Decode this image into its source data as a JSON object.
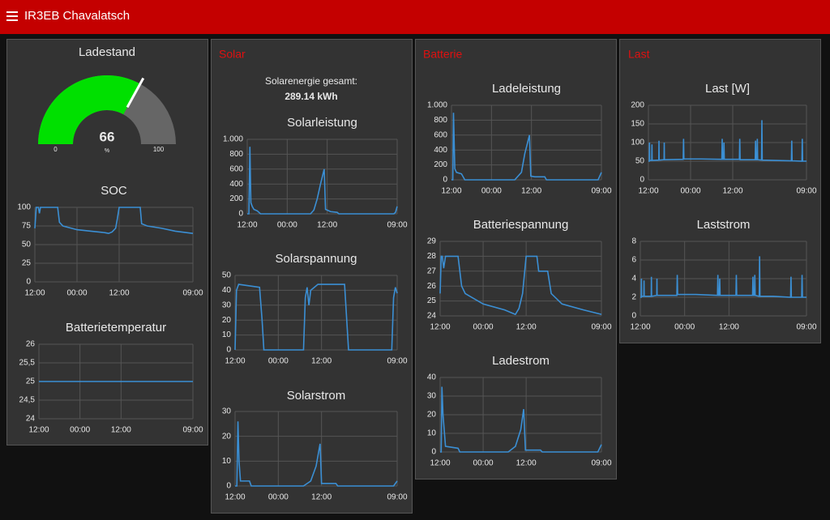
{
  "header": {
    "title": "IR3EB Chavalatsch"
  },
  "groups": [
    {
      "widgets": [
        {
          "type": "gauge",
          "title": "Ladestand",
          "value": 66,
          "min": 0,
          "max": 100,
          "units": "%",
          "color": "#00e000"
        },
        {
          "type": "line",
          "title": "SOC",
          "color": "#3b8fd4",
          "xlim": [
            0,
            45
          ],
          "xticks": [
            {
              "value": 0,
              "label": "12:00"
            },
            {
              "value": 12,
              "label": "00:00"
            },
            {
              "value": 24,
              "label": "12:00"
            },
            {
              "value": 45,
              "label": "09:00"
            }
          ],
          "ylim": [
            0,
            100
          ],
          "yticks": [
            0,
            25,
            50,
            75,
            100
          ],
          "x": [
            0,
            0.4,
            1,
            1.3,
            1.6,
            6.5,
            7,
            8,
            12,
            16,
            20,
            21,
            22,
            23,
            23.5,
            24,
            30,
            30.4,
            32,
            36,
            40,
            45
          ],
          "values": [
            72,
            100,
            100,
            92,
            100,
            100,
            80,
            75,
            70,
            68,
            66,
            65,
            67,
            72,
            85,
            100,
            100,
            78,
            75,
            72,
            68,
            65
          ]
        },
        {
          "type": "line",
          "title": "Batterietemperatur",
          "color": "#3b8fd4",
          "xlim": [
            0,
            45
          ],
          "xticks": [
            {
              "value": 0,
              "label": "12:00"
            },
            {
              "value": 12,
              "label": "00:00"
            },
            {
              "value": 24,
              "label": "12:00"
            },
            {
              "value": 45,
              "label": "09:00"
            }
          ],
          "ylim": [
            24,
            26
          ],
          "yticks": [
            24,
            {
              "value": 24.5,
              "label": "24,5"
            },
            25,
            {
              "value": 25.5,
              "label": "25,5"
            },
            26
          ],
          "x": [
            0,
            45
          ],
          "values": [
            25,
            25
          ]
        }
      ]
    },
    {
      "title": "Solar",
      "widgets": [
        {
          "type": "text",
          "label": "Solarenergie gesamt:",
          "value": "289.14 kWh"
        },
        {
          "type": "line",
          "title": "Solarleistung",
          "color": "#3b8fd4",
          "xlim": [
            0,
            45
          ],
          "xticks": [
            {
              "value": 0,
              "label": "12:00"
            },
            {
              "value": 12,
              "label": "00:00"
            },
            {
              "value": 24,
              "label": "12:00"
            },
            {
              "value": 45,
              "label": "09:00"
            }
          ],
          "ylim": [
            0,
            1000
          ],
          "yticks": [
            0,
            200,
            400,
            600,
            800,
            {
              "value": 1000,
              "label": "1.000"
            }
          ],
          "x": [
            0,
            0.5,
            0.8,
            1.1,
            1.5,
            2,
            3,
            4,
            19,
            20,
            21,
            22,
            23.1,
            23.5,
            24,
            25,
            27,
            27.5,
            44,
            44.5,
            45
          ],
          "values": [
            0,
            0,
            900,
            150,
            100,
            60,
            40,
            0,
            0,
            50,
            200,
            400,
            600,
            60,
            50,
            30,
            20,
            0,
            0,
            20,
            100
          ]
        },
        {
          "type": "line",
          "title": "Solarspannung",
          "color": "#3b8fd4",
          "xlim": [
            0,
            45
          ],
          "xticks": [
            {
              "value": 0,
              "label": "12:00"
            },
            {
              "value": 12,
              "label": "00:00"
            },
            {
              "value": 24,
              "label": "12:00"
            },
            {
              "value": 45,
              "label": "09:00"
            }
          ],
          "ylim": [
            0,
            50
          ],
          "yticks": [
            0,
            10,
            20,
            30,
            40,
            50
          ],
          "x": [
            0,
            0.4,
            1,
            6.8,
            7.5,
            8,
            19,
            19.5,
            20,
            20.5,
            21,
            22,
            23,
            30.4,
            31.5,
            43.5,
            44,
            44.5,
            45
          ],
          "values": [
            0,
            40,
            44,
            42,
            20,
            0,
            0,
            35,
            42,
            30,
            40,
            42,
            44,
            44,
            0,
            0,
            35,
            42,
            38
          ]
        },
        {
          "type": "line",
          "title": "Solarstrom",
          "color": "#3b8fd4",
          "xlim": [
            0,
            45
          ],
          "xticks": [
            {
              "value": 0,
              "label": "12:00"
            },
            {
              "value": 12,
              "label": "00:00"
            },
            {
              "value": 24,
              "label": "12:00"
            },
            {
              "value": 45,
              "label": "09:00"
            }
          ],
          "ylim": [
            0,
            30
          ],
          "yticks": [
            0,
            10,
            20,
            30
          ],
          "x": [
            0,
            0.5,
            0.8,
            1.1,
            1.5,
            4,
            4.5,
            19,
            21,
            22.5,
            23.6,
            24,
            25,
            28,
            28.5,
            44,
            45
          ],
          "values": [
            0,
            0,
            26,
            10,
            2,
            2,
            0,
            0,
            2,
            8,
            17,
            1,
            1,
            1,
            0,
            0,
            2
          ]
        }
      ]
    },
    {
      "title": "Batterie",
      "widgets": [
        {
          "type": "line",
          "title": "Ladeleistung",
          "color": "#3b8fd4",
          "xlim": [
            0,
            45
          ],
          "xticks": [
            {
              "value": 0,
              "label": "12:00"
            },
            {
              "value": 12,
              "label": "00:00"
            },
            {
              "value": 24,
              "label": "12:00"
            },
            {
              "value": 45,
              "label": "09:00"
            }
          ],
          "ylim": [
            0,
            1000
          ],
          "yticks": [
            0,
            200,
            400,
            600,
            800,
            {
              "value": 1000,
              "label": "1.000"
            }
          ],
          "x": [
            0,
            0.4,
            0.6,
            1,
            1.5,
            3,
            4,
            19,
            21,
            22,
            23.4,
            23.8,
            25,
            28,
            28.5,
            44,
            45
          ],
          "values": [
            0,
            0,
            900,
            150,
            100,
            80,
            0,
            0,
            100,
            350,
            600,
            50,
            40,
            40,
            0,
            0,
            100
          ]
        },
        {
          "type": "line",
          "title": "Batteriespannung",
          "color": "#3b8fd4",
          "xlim": [
            0,
            45
          ],
          "xticks": [
            {
              "value": 0,
              "label": "12:00"
            },
            {
              "value": 12,
              "label": "00:00"
            },
            {
              "value": 24,
              "label": "12:00"
            },
            {
              "value": 45,
              "label": "09:00"
            }
          ],
          "ylim": [
            24,
            29
          ],
          "yticks": [
            24,
            25,
            26,
            27,
            28,
            29
          ],
          "x": [
            0,
            0.3,
            0.6,
            1,
            1.5,
            5,
            6,
            7,
            12,
            18,
            21,
            22,
            23,
            24,
            27,
            27.5,
            30,
            31,
            34,
            40,
            45
          ],
          "values": [
            25.5,
            28,
            28,
            27.2,
            28,
            28,
            26,
            25.5,
            24.8,
            24.4,
            24.1,
            24.5,
            25.5,
            28,
            28,
            27,
            27,
            25.5,
            24.8,
            24.4,
            24.1
          ]
        },
        {
          "type": "line",
          "title": "Ladestrom",
          "color": "#3b8fd4",
          "xlim": [
            0,
            45
          ],
          "xticks": [
            {
              "value": 0,
              "label": "12:00"
            },
            {
              "value": 12,
              "label": "00:00"
            },
            {
              "value": 24,
              "label": "12:00"
            },
            {
              "value": 45,
              "label": "09:00"
            }
          ],
          "ylim": [
            0,
            40
          ],
          "yticks": [
            0,
            10,
            20,
            30,
            40
          ],
          "x": [
            0,
            0.3,
            0.5,
            0.8,
            1.5,
            5,
            5.5,
            19,
            21,
            22.5,
            23.3,
            23.8,
            25,
            28,
            28.5,
            44,
            45
          ],
          "values": [
            0,
            0,
            35,
            20,
            3,
            2,
            0,
            0,
            3,
            12,
            23,
            1,
            1,
            1,
            0,
            0,
            4
          ]
        }
      ]
    },
    {
      "title": "Last",
      "widgets": [
        {
          "type": "line",
          "title": "Last [W]",
          "color": "#3b8fd4",
          "xlim": [
            0,
            45
          ],
          "xticks": [
            {
              "value": 0,
              "label": "12:00"
            },
            {
              "value": 12,
              "label": "00:00"
            },
            {
              "value": 24,
              "label": "12:00"
            },
            {
              "value": 45,
              "label": "09:00"
            }
          ],
          "ylim": [
            0,
            200
          ],
          "yticks": [
            0,
            50,
            100,
            150,
            200
          ],
          "x": [
            0,
            0.25,
            0.3,
            0.35,
            0.95,
            1,
            1.05,
            2.95,
            3,
            3.05,
            4.45,
            4.5,
            4.55,
            9.9,
            10,
            10.1,
            15,
            20.9,
            21,
            21.1,
            21.4,
            21.5,
            21.6,
            25.9,
            26,
            26.1,
            30.4,
            30.5,
            30.6,
            30.9,
            31,
            31.1,
            32.2,
            32.3,
            32.4,
            36,
            40.7,
            40.8,
            40.9,
            43.7,
            43.8,
            43.9,
            45
          ],
          "values": [
            50,
            50,
            100,
            52,
            52,
            95,
            52,
            53,
            105,
            53,
            54,
            100,
            54,
            55,
            110,
            56,
            56,
            55,
            110,
            55,
            55,
            100,
            55,
            55,
            110,
            54,
            54,
            105,
            54,
            54,
            110,
            54,
            53,
            160,
            53,
            52,
            51,
            105,
            51,
            50,
            110,
            50,
            50
          ]
        },
        {
          "type": "line",
          "title": "Laststrom",
          "color": "#3b8fd4",
          "xlim": [
            0,
            45
          ],
          "xticks": [
            {
              "value": 0,
              "label": "12:00"
            },
            {
              "value": 12,
              "label": "00:00"
            },
            {
              "value": 24,
              "label": "12:00"
            },
            {
              "value": 45,
              "label": "09:00"
            }
          ],
          "ylim": [
            0,
            8
          ],
          "yticks": [
            0,
            2,
            4,
            6,
            8
          ],
          "x": [
            0,
            0.25,
            0.3,
            0.35,
            0.95,
            1,
            1.05,
            2.95,
            3,
            3.05,
            4.45,
            4.5,
            4.55,
            9.9,
            10,
            10.1,
            15,
            20.9,
            21,
            21.1,
            21.4,
            21.5,
            21.6,
            25.9,
            26,
            26.1,
            30.4,
            30.5,
            30.6,
            30.9,
            31,
            31.1,
            32.2,
            32.3,
            32.4,
            36,
            40.7,
            40.8,
            40.9,
            43.7,
            43.8,
            43.9,
            45
          ],
          "values": [
            2,
            2,
            4,
            2.1,
            2.1,
            3.8,
            2.1,
            2.1,
            4.2,
            2.1,
            2.2,
            4,
            2.2,
            2.2,
            4.4,
            2.3,
            2.3,
            2.2,
            4.4,
            2.2,
            2.2,
            4,
            2.2,
            2.2,
            4.4,
            2.2,
            2.2,
            4.2,
            2.2,
            2.2,
            4.4,
            2.2,
            2.1,
            6.4,
            2.1,
            2.1,
            2,
            4.2,
            2,
            2,
            4.4,
            2,
            2
          ]
        }
      ]
    }
  ]
}
